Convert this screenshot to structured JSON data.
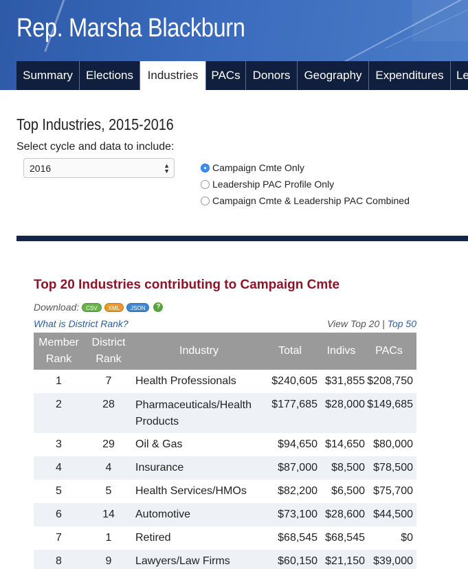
{
  "header": {
    "title": "Rep. Marsha Blackburn",
    "tabs": [
      {
        "label": "Summary",
        "active": false
      },
      {
        "label": "Elections",
        "active": false
      },
      {
        "label": "Industries",
        "active": true
      },
      {
        "label": "PACs",
        "active": false
      },
      {
        "label": "Donors",
        "active": false
      },
      {
        "label": "Geography",
        "active": false
      },
      {
        "label": "Expenditures",
        "active": false
      },
      {
        "label": "Le",
        "active": false
      }
    ]
  },
  "controls": {
    "section_title": "Top Industries, 2015-2016",
    "select_label": "Select cycle and data to include:",
    "cycle_value": "2016",
    "options": [
      {
        "label": "Campaign Cmte Only",
        "checked": true
      },
      {
        "label": "Leadership PAC Profile Only",
        "checked": false
      },
      {
        "label": "Campaign Cmte & Leadership PAC Combined",
        "checked": false
      }
    ]
  },
  "table_section": {
    "title": "Top 20 Industries contributing to Campaign Cmte",
    "download_label": "Download:",
    "formats": [
      "CSV",
      "XML",
      "JSON"
    ],
    "help": "?",
    "district_rank_link": "What is District Rank?",
    "view_label": "View Top 20",
    "separator": "|",
    "top50_link": "Top 50",
    "columns": {
      "member_rank": "Member Rank",
      "district_rank": "District Rank",
      "industry": "Industry",
      "total": "Total",
      "indivs": "Indivs",
      "pacs": "PACs"
    },
    "rows": [
      {
        "member_rank": "1",
        "district_rank": "7",
        "industry": "Health Professionals",
        "total": "$240,605",
        "indivs": "$31,855",
        "pacs": "$208,750"
      },
      {
        "member_rank": "2",
        "district_rank": "28",
        "industry": "Pharmaceuticals/Health Products",
        "total": "$177,685",
        "indivs": "$28,000",
        "pacs": "$149,685"
      },
      {
        "member_rank": "3",
        "district_rank": "29",
        "industry": "Oil & Gas",
        "total": "$94,650",
        "indivs": "$14,650",
        "pacs": "$80,000"
      },
      {
        "member_rank": "4",
        "district_rank": "4",
        "industry": "Insurance",
        "total": "$87,000",
        "indivs": "$8,500",
        "pacs": "$78,500"
      },
      {
        "member_rank": "5",
        "district_rank": "5",
        "industry": "Health Services/HMOs",
        "total": "$82,200",
        "indivs": "$6,500",
        "pacs": "$75,700"
      },
      {
        "member_rank": "6",
        "district_rank": "14",
        "industry": "Automotive",
        "total": "$73,100",
        "indivs": "$28,600",
        "pacs": "$44,500"
      },
      {
        "member_rank": "7",
        "district_rank": "1",
        "industry": "Retired",
        "total": "$68,545",
        "indivs": "$68,545",
        "pacs": "$0"
      },
      {
        "member_rank": "8",
        "district_rank": "9",
        "industry": "Lawyers/Law Firms",
        "total": "$60,150",
        "indivs": "$21,150",
        "pacs": "$39,000"
      }
    ]
  }
}
